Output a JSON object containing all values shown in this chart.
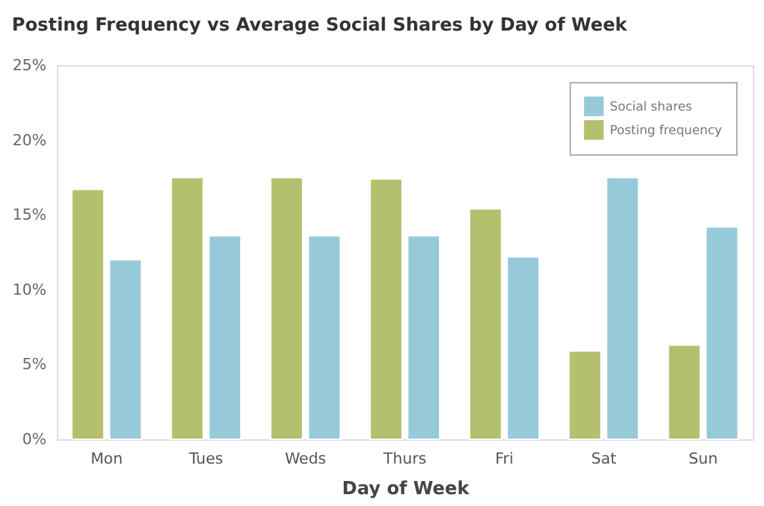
{
  "chart_data": {
    "type": "bar",
    "title": "Posting Frequency vs Average Social Shares by Day of Week",
    "xlabel": "Day of Week",
    "categories": [
      "Mon",
      "Tues",
      "Weds",
      "Thurs",
      "Fri",
      "Sat",
      "Sun"
    ],
    "series": [
      {
        "name": "Posting frequency",
        "color": "#b5c06e",
        "values": [
          16.7,
          17.5,
          17.5,
          17.4,
          15.4,
          5.9,
          6.3
        ]
      },
      {
        "name": "Social shares",
        "color": "#97cad9",
        "values": [
          12.0,
          13.6,
          13.6,
          13.6,
          12.2,
          17.5,
          14.2
        ]
      }
    ],
    "ylim": [
      0,
      25
    ],
    "yticks": [
      {
        "value": 0,
        "label": "0%"
      },
      {
        "value": 5,
        "label": "5%"
      },
      {
        "value": 10,
        "label": "10%"
      },
      {
        "value": 15,
        "label": "15%"
      },
      {
        "value": 20,
        "label": "20%"
      },
      {
        "value": 25,
        "label": "25%"
      }
    ],
    "grid": false,
    "legend": "top right"
  }
}
